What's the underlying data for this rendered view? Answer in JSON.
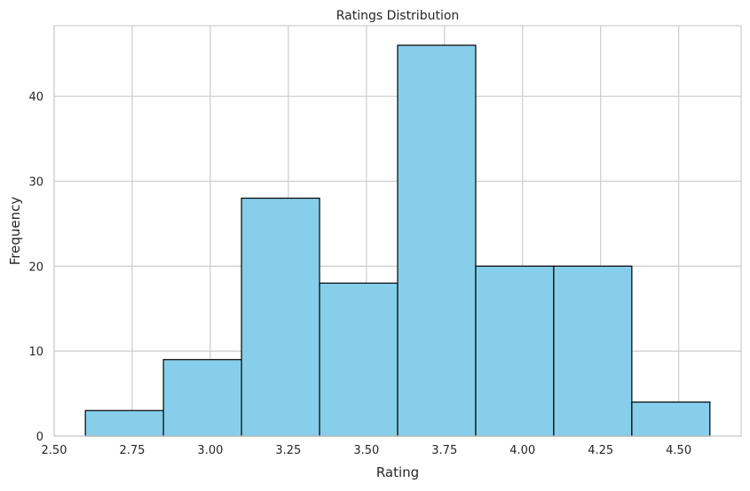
{
  "chart_data": {
    "type": "bar",
    "title": "Ratings Distribution",
    "xlabel": "Rating",
    "ylabel": "Frequency",
    "bin_edges": [
      2.6,
      2.85,
      3.1,
      3.35,
      3.6,
      3.85,
      4.1,
      4.35,
      4.6
    ],
    "values": [
      3,
      9,
      28,
      18,
      46,
      20,
      20,
      4
    ],
    "xlim": [
      2.5,
      4.7
    ],
    "ylim": [
      0,
      48.3
    ],
    "xticks": [
      2.5,
      2.75,
      3.0,
      3.25,
      3.5,
      3.75,
      4.0,
      4.25,
      4.5
    ],
    "xtick_labels": [
      "2.50",
      "2.75",
      "3.00",
      "3.25",
      "3.50",
      "3.75",
      "4.00",
      "4.25",
      "4.50"
    ],
    "yticks": [
      0,
      10,
      20,
      30,
      40
    ],
    "ytick_labels": [
      "0",
      "10",
      "20",
      "30",
      "40"
    ],
    "grid": true,
    "bar_color": "#87CEEB",
    "edge_color": "#000000",
    "grid_color": "#cccccc"
  }
}
